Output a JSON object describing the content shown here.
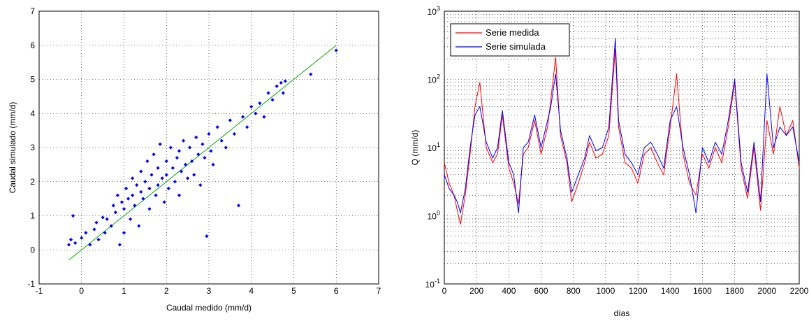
{
  "chart_data": [
    {
      "type": "scatter",
      "xlabel": "Caudal medido (mm/d)",
      "ylabel": "Caudal simulado (mm/d)",
      "xlim": [
        -1,
        7
      ],
      "ylim": [
        -1,
        7
      ],
      "xticks": [
        "-1",
        "0",
        "1",
        "2",
        "3",
        "4",
        "5",
        "6",
        "7"
      ],
      "yticks": [
        "-1",
        "0",
        "1",
        "2",
        "3",
        "4",
        "5",
        "6",
        "7"
      ],
      "grid": true,
      "colors": {
        "points": "#0000ff",
        "fit_line": "#00aa00"
      },
      "fit_line": {
        "x": [
          -0.3,
          6.0
        ],
        "y": [
          -0.3,
          6.0
        ]
      },
      "points": [
        [
          -0.3,
          0.15
        ],
        [
          -0.25,
          0.3
        ],
        [
          -0.2,
          1.0
        ],
        [
          -0.15,
          0.2
        ],
        [
          0.0,
          0.35
        ],
        [
          0.1,
          0.5
        ],
        [
          0.2,
          0.15
        ],
        [
          0.3,
          0.6
        ],
        [
          0.35,
          0.8
        ],
        [
          0.4,
          0.3
        ],
        [
          0.5,
          0.95
        ],
        [
          0.55,
          0.5
        ],
        [
          0.6,
          0.9
        ],
        [
          0.7,
          0.7
        ],
        [
          0.75,
          1.3
        ],
        [
          0.8,
          1.1
        ],
        [
          0.85,
          1.6
        ],
        [
          0.9,
          0.15
        ],
        [
          0.95,
          1.4
        ],
        [
          1.0,
          1.2
        ],
        [
          1.0,
          0.5
        ],
        [
          1.05,
          1.8
        ],
        [
          1.1,
          1.5
        ],
        [
          1.15,
          0.9
        ],
        [
          1.2,
          1.6
        ],
        [
          1.2,
          2.1
        ],
        [
          1.25,
          1.3
        ],
        [
          1.3,
          1.9
        ],
        [
          1.35,
          0.7
        ],
        [
          1.4,
          1.7
        ],
        [
          1.4,
          2.3
        ],
        [
          1.45,
          1.5
        ],
        [
          1.5,
          2.0
        ],
        [
          1.55,
          2.6
        ],
        [
          1.6,
          1.8
        ],
        [
          1.6,
          1.2
        ],
        [
          1.65,
          2.2
        ],
        [
          1.7,
          2.8
        ],
        [
          1.75,
          1.6
        ],
        [
          1.8,
          2.4
        ],
        [
          1.8,
          1.9
        ],
        [
          1.85,
          3.1
        ],
        [
          1.9,
          2.1
        ],
        [
          1.95,
          1.4
        ],
        [
          2.0,
          2.6
        ],
        [
          2.0,
          2.2
        ],
        [
          2.05,
          1.8
        ],
        [
          2.1,
          3.0
        ],
        [
          2.15,
          2.4
        ],
        [
          2.2,
          2.0
        ],
        [
          2.25,
          2.7
        ],
        [
          2.3,
          1.6
        ],
        [
          2.3,
          2.9
        ],
        [
          2.35,
          2.3
        ],
        [
          2.4,
          3.2
        ],
        [
          2.45,
          2.5
        ],
        [
          2.5,
          2.1
        ],
        [
          2.55,
          3.0
        ],
        [
          2.6,
          2.6
        ],
        [
          2.65,
          2.2
        ],
        [
          2.7,
          3.3
        ],
        [
          2.75,
          2.8
        ],
        [
          2.8,
          1.9
        ],
        [
          2.85,
          3.1
        ],
        [
          2.9,
          2.7
        ],
        [
          2.95,
          0.4
        ],
        [
          3.0,
          3.4
        ],
        [
          3.05,
          2.9
        ],
        [
          3.1,
          2.5
        ],
        [
          3.2,
          3.6
        ],
        [
          3.3,
          3.2
        ],
        [
          3.4,
          3.0
        ],
        [
          3.5,
          3.8
        ],
        [
          3.6,
          3.4
        ],
        [
          3.7,
          1.3
        ],
        [
          3.8,
          3.9
        ],
        [
          3.9,
          3.6
        ],
        [
          4.0,
          4.2
        ],
        [
          4.1,
          4.0
        ],
        [
          4.2,
          4.3
        ],
        [
          4.3,
          3.9
        ],
        [
          4.4,
          4.6
        ],
        [
          4.5,
          4.4
        ],
        [
          4.6,
          4.8
        ],
        [
          4.7,
          4.9
        ],
        [
          4.75,
          4.6
        ],
        [
          4.8,
          4.95
        ],
        [
          5.4,
          5.15
        ],
        [
          6.0,
          5.85
        ]
      ]
    },
    {
      "type": "line",
      "xlabel": "días",
      "ylabel": "Q (mm/d)",
      "xlim": [
        0,
        2200
      ],
      "ylim": [
        0.1,
        1000
      ],
      "yscale": "log",
      "xticks": [
        "0",
        "200",
        "400",
        "600",
        "800",
        "1000",
        "1200",
        "1400",
        "1600",
        "1800",
        "2000",
        "2200"
      ],
      "yticks": [
        {
          "base": "10",
          "exp": "-1"
        },
        {
          "base": "10",
          "exp": "0"
        },
        {
          "base": "10",
          "exp": "1"
        },
        {
          "base": "10",
          "exp": "2"
        },
        {
          "base": "10",
          "exp": "3"
        }
      ],
      "grid": true,
      "legend": "top-left",
      "series": [
        {
          "name": "Serie medida",
          "color": "#ff0000",
          "x": [
            0,
            30,
            60,
            80,
            100,
            130,
            160,
            190,
            220,
            260,
            300,
            330,
            360,
            400,
            430,
            460,
            490,
            520,
            560,
            600,
            640,
            660,
            690,
            720,
            760,
            790,
            830,
            870,
            900,
            940,
            980,
            1020,
            1060,
            1080,
            1120,
            1160,
            1200,
            1240,
            1280,
            1320,
            1360,
            1400,
            1440,
            1480,
            1520,
            1560,
            1600,
            1640,
            1680,
            1720,
            1760,
            1800,
            1840,
            1880,
            1920,
            1960,
            2000,
            2040,
            2080,
            2120,
            2160,
            2200
          ],
          "y": [
            6,
            3,
            2,
            1.2,
            0.75,
            2,
            8,
            40,
            90,
            10,
            6,
            8,
            30,
            5,
            3,
            1.5,
            8,
            10,
            25,
            8,
            20,
            50,
            210,
            15,
            6,
            1.6,
            3,
            6,
            12,
            7,
            8,
            15,
            280,
            20,
            6,
            5,
            3,
            8,
            10,
            6,
            4,
            20,
            120,
            8,
            3,
            2,
            8,
            5,
            10,
            6,
            20,
            90,
            5,
            1.8,
            10,
            1.2,
            25,
            8,
            40,
            15,
            25,
            5
          ]
        },
        {
          "name": "Serie simulada",
          "color": "#0000ff",
          "x": [
            0,
            30,
            60,
            80,
            100,
            130,
            160,
            190,
            220,
            260,
            300,
            330,
            360,
            400,
            430,
            460,
            490,
            520,
            560,
            600,
            640,
            660,
            690,
            720,
            760,
            790,
            830,
            870,
            900,
            940,
            980,
            1020,
            1060,
            1080,
            1120,
            1160,
            1200,
            1240,
            1280,
            1320,
            1360,
            1400,
            1440,
            1480,
            1520,
            1560,
            1600,
            1640,
            1680,
            1720,
            1760,
            1800,
            1840,
            1880,
            1920,
            1960,
            2000,
            2040,
            2080,
            2120,
            2160,
            2200
          ],
          "y": [
            4,
            2.5,
            2,
            1.6,
            1.1,
            2.5,
            10,
            30,
            40,
            12,
            7,
            10,
            35,
            6,
            4,
            1.1,
            10,
            12,
            30,
            10,
            25,
            40,
            120,
            18,
            7,
            2.2,
            4,
            7,
            15,
            9,
            10,
            20,
            400,
            25,
            8,
            6,
            4,
            10,
            12,
            8,
            5,
            25,
            40,
            10,
            4,
            1.1,
            10,
            6,
            12,
            8,
            25,
            100,
            6,
            2.2,
            12,
            1.6,
            120,
            10,
            20,
            15,
            20,
            6
          ]
        }
      ]
    }
  ]
}
